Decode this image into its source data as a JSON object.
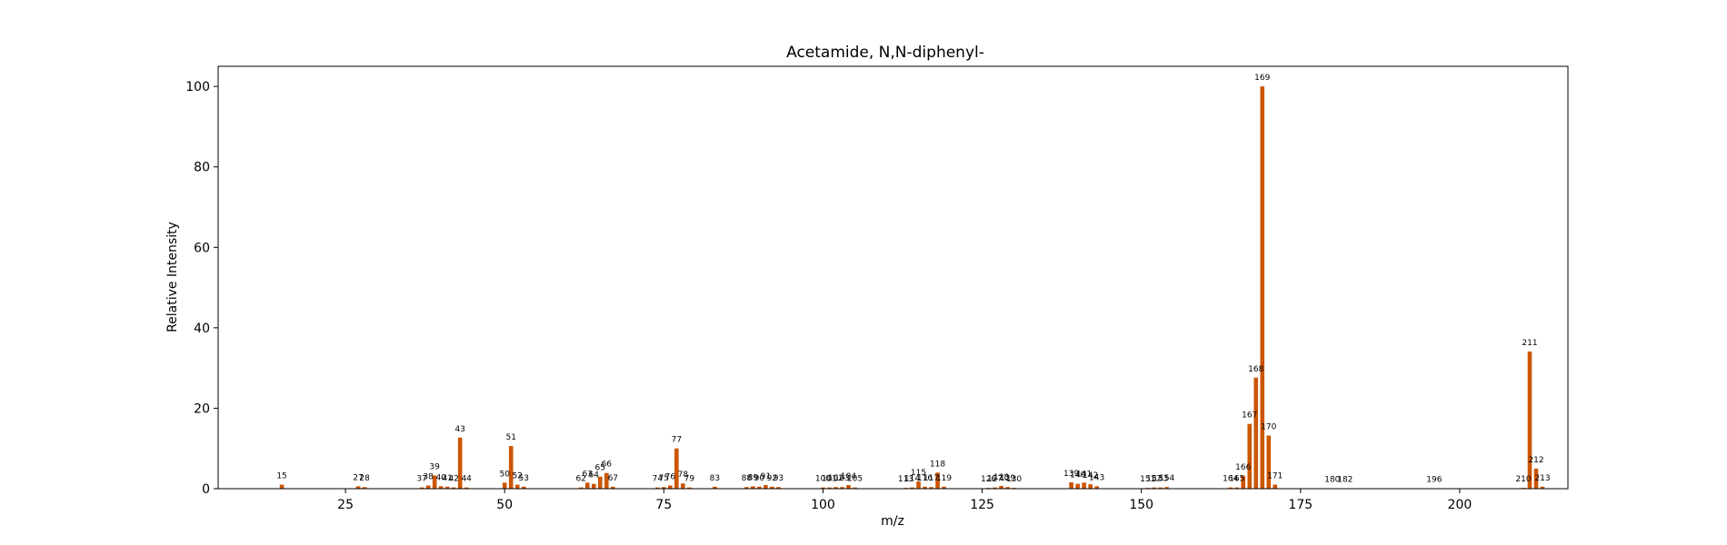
{
  "chart_data": {
    "type": "bar",
    "title": "Acetamide, N,N-diphenyl-",
    "xlabel": "m/z",
    "ylabel": "Relative Intensity",
    "xlim": [
      5,
      217
    ],
    "ylim": [
      0,
      105
    ],
    "xticks": [
      25,
      50,
      75,
      100,
      125,
      150,
      175,
      200
    ],
    "yticks": [
      0,
      20,
      40,
      60,
      80,
      100
    ],
    "grid": false,
    "bar_color": "#cc5500",
    "x": [
      15,
      27,
      28,
      37,
      38,
      39,
      40,
      41,
      42,
      43,
      44,
      50,
      51,
      52,
      53,
      62,
      63,
      64,
      65,
      66,
      67,
      74,
      75,
      76,
      77,
      78,
      79,
      83,
      88,
      89,
      90,
      91,
      92,
      93,
      100,
      101,
      102,
      103,
      104,
      105,
      113,
      114,
      115,
      116,
      117,
      118,
      119,
      126,
      127,
      128,
      129,
      130,
      139,
      140,
      141,
      142,
      143,
      151,
      152,
      153,
      154,
      164,
      165,
      166,
      167,
      168,
      169,
      170,
      171,
      180,
      182,
      196,
      210,
      211,
      212,
      213
    ],
    "values": [
      1.0,
      0.6,
      0.4,
      0.3,
      0.8,
      3.3,
      0.6,
      0.5,
      0.3,
      12.7,
      0.3,
      1.5,
      10.6,
      1.0,
      0.5,
      0.3,
      1.5,
      1.2,
      3.0,
      3.9,
      0.5,
      0.3,
      0.4,
      0.8,
      10.0,
      1.3,
      0.3,
      0.5,
      0.4,
      0.6,
      0.5,
      0.9,
      0.5,
      0.4,
      0.3,
      0.3,
      0.4,
      0.4,
      0.9,
      0.3,
      0.2,
      0.3,
      1.8,
      0.5,
      0.4,
      4.0,
      0.5,
      0.2,
      0.3,
      0.7,
      0.4,
      0.2,
      1.6,
      1.2,
      1.5,
      1.1,
      0.6,
      0.2,
      0.3,
      0.3,
      0.4,
      0.3,
      0.3,
      3.2,
      16.1,
      27.6,
      100.0,
      13.2,
      1.0,
      0.1,
      0.1,
      0.1,
      0.2,
      34.1,
      5.0,
      0.5
    ],
    "labels": [
      "15",
      "27",
      "28",
      "37",
      "38",
      "39",
      "40",
      "41",
      "42",
      "43",
      "44",
      "50",
      "51",
      "52",
      "53",
      "62",
      "63",
      "64",
      "65",
      "66",
      "67",
      "74",
      "75",
      "76",
      "77",
      "78",
      "79",
      "83",
      "88",
      "89",
      "90",
      "91",
      "92",
      "93",
      "100",
      "101",
      "102",
      "103",
      "104",
      "105",
      "113",
      "114",
      "115",
      "116",
      "117",
      "118",
      "119",
      "126",
      "127",
      "128",
      "129",
      "130",
      "139",
      "140",
      "141",
      "142",
      "143",
      "151",
      "152",
      "153",
      "154",
      "164",
      "165",
      "166",
      "167",
      "168",
      "169",
      "170",
      "171",
      "180",
      "182",
      "196",
      "210",
      "211",
      "212",
      "213"
    ]
  }
}
